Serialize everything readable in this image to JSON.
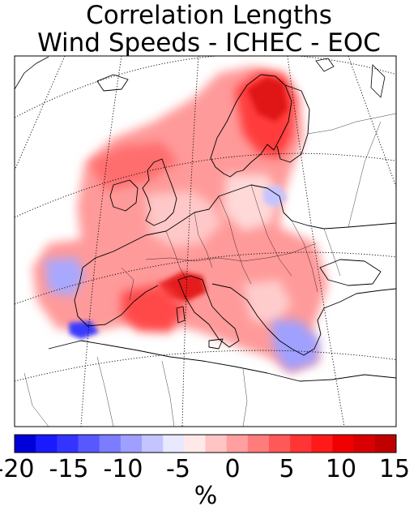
{
  "title": {
    "line1": "Correlation Lengths",
    "line2": "Wind Speeds - ICHEC - EOC"
  },
  "colorbar": {
    "unit": "%",
    "min": -20,
    "max": 15,
    "ticks": [
      "-20",
      "-15",
      "-10",
      "-5",
      "0",
      "5",
      "10",
      "15"
    ],
    "colors": [
      "#0000d8",
      "#1a1aff",
      "#3434ff",
      "#5858ff",
      "#7c7cff",
      "#9f9fff",
      "#c4c4ff",
      "#e8e8ff",
      "#ffe8e8",
      "#ffc4c4",
      "#ff9f9f",
      "#ff7c7c",
      "#ff5858",
      "#ff3434",
      "#ff1a1a",
      "#f00000",
      "#d80000",
      "#c00000"
    ]
  },
  "map": {
    "region": "Europe",
    "colors": {
      "land_outline": "#000000",
      "graticule": "#000000",
      "frame": "#000000"
    }
  }
}
